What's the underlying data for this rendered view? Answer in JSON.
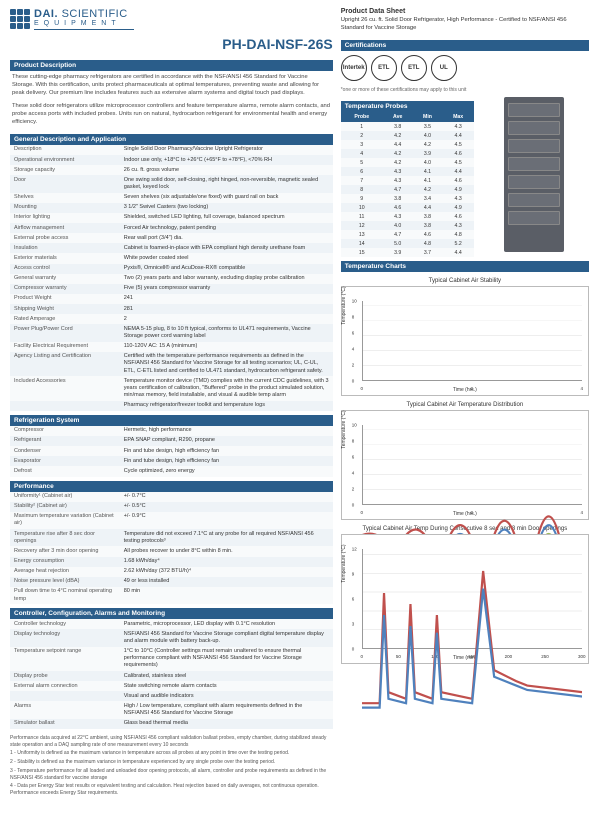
{
  "logo": {
    "l1": "DAI.",
    "l2": "SCIENTIFIC",
    "l3": "EQUIPMENT"
  },
  "model": "PH-DAI-NSF-26S",
  "pds": {
    "title": "Product Data Sheet",
    "sub": "Upright 26 cu. ft. Solid Door Refrigerator, High Performance - Certified to NSF/ANSI 456 Standard for Vaccine Storage"
  },
  "sections": {
    "prod_desc": "Product Description",
    "gen_desc": "General Description and Application",
    "refrig": "Refrigeration System",
    "perf": "Performance",
    "controller": "Controller, Configuration, Alarms and Monitoring",
    "cert": "Certifications",
    "probes": "Temperature Probes",
    "charts": "Temperature Charts"
  },
  "prod_desc_text1": "These cutting-edge pharmacy refrigerators are certified in accordance with the NSF/ANSI 456 Standard for Vaccine Storage. With this certification, units protect pharmaceuticals at optimal temperatures, preventing waste and allowing for peak delivery. Our premium line includes features such as extensive alarm systems and digital touch pad displays.",
  "prod_desc_text2": "These solid door refrigerators utilize microprocessor controllers and feature temperature alarms, remote alarm contacts, and probe access ports with included probes. Units run on natural, hydrocarbon refrigerant for environmental health and energy efficiency.",
  "gen_desc": [
    [
      "Description",
      "Single Solid Door Pharmacy/Vaccine Upright Refrigerator"
    ],
    [
      "Operational environment",
      "Indoor use only, +18°C to +26°C (+65°F to +78°F), <70% RH"
    ],
    [
      "Storage capacity",
      "26 cu. ft. gross volume"
    ],
    [
      "Door",
      "One swing solid door, self-closing, right hinged, non-reversible, magnetic sealed gasket, keyed lock"
    ],
    [
      "Shelves",
      "Seven shelves (six adjustable/one fixed) with guard rail on back"
    ],
    [
      "Mounting",
      "3 1/2\" Swivel Casters (two locking)"
    ],
    [
      "Interior lighting",
      "Shielded, switched LED lighting, full coverage, balanced spectrum"
    ],
    [
      "Airflow management",
      "Forced Air technology, patent pending"
    ],
    [
      "External probe access",
      "Rear wall port (3/4\") dia."
    ],
    [
      "Insulation",
      "Cabinet is foamed-in-place with EPA compliant high density urethane foam"
    ],
    [
      "Exterior materials",
      "White powder coated steel"
    ],
    [
      "Access control",
      "Pyxis®, Omnicell® and AcuDose-RX® compatible"
    ],
    [
      "General warranty",
      "Two (2) years parts and labor warranty, excluding display probe calibration"
    ],
    [
      "Compressor warranty",
      "Five (5) years compressor warranty"
    ],
    [
      "Product Weight",
      "241"
    ],
    [
      "Shipping Weight",
      "281"
    ],
    [
      "Rated Amperage",
      "2"
    ],
    [
      "Power Plug/Power Cord",
      "NEMA 5-15 plug, 8 to 10 ft typical, conforms to UL471 requirements, Vaccine Storage power cord warning label"
    ],
    [
      "Facility Electrical Requirement",
      "110-120V AC: 15 A (minimum)"
    ],
    [
      "Agency Listing and Certification",
      "Certified with the temperature performance requirements as defined in the NSF/ANSI 456 Standard for Vaccine Storage for all testing scenarios; UL, C-UL, ETL, C-ETL listed and certified to UL471 standard, hydrocarbon refrigerant safety."
    ],
    [
      "Included Accessories",
      "Temperature monitor device (TMD) complies with the current CDC guidelines, with 3 years certification of calibration, \"Buffered\" probe in the product simulated solution, min/max memory, field installable, and visual & audible temp alarm"
    ],
    [
      "",
      "Pharmacy refrigerator/freezer toolkit and temperature logs"
    ]
  ],
  "refrig": [
    [
      "Compressor",
      "Hermetic, high performance"
    ],
    [
      "Refrigerant",
      "EPA SNAP compliant, R290, propane"
    ],
    [
      "Condenser",
      "Fin and tube design, high efficiency fan"
    ],
    [
      "Evaporator",
      "Fin and tube design, high efficiency fan"
    ],
    [
      "Defrost",
      "Cycle optimized, zero energy"
    ]
  ],
  "perf": [
    [
      "Uniformity¹ (Cabinet air)",
      "+/- 0.7°C"
    ],
    [
      "Stability² (Cabinet air)",
      "+/- 0.5°C"
    ],
    [
      "Maximum temperature variation (Cabinet air)",
      "+/- 0.9°C"
    ],
    [
      "Temperature rise after 8 sec door openings",
      "Temperature did not exceed 7.1°C at any probe for all required NSF/ANSI 456 testing protocols³"
    ],
    [
      "Recovery after 3 min door opening",
      "All probes recover to under 8°C within 8 min."
    ],
    [
      "Energy consumption",
      "1.68 kWh/day⁴"
    ],
    [
      "Average heat rejection",
      "2.62 kWh/day (372 BTU/h)⁴"
    ],
    [
      "Noise pressure level (dBA)",
      "49 or less installed"
    ],
    [
      "Pull down time to 4°C nominal operating temp",
      "80 min"
    ]
  ],
  "controller": [
    [
      "Controller technology",
      "Parametric, microprocessor, LED display with 0.1°C resolution"
    ],
    [
      "Display technology",
      "NSF/ANSI 456 Standard for Vaccine Storage compliant digital temperature display and alarm module with battery back-up."
    ],
    [
      "Temperature setpoint range",
      "1°C to 10°C (Controller settings must remain unaltered to ensure thermal performance compliant with NSF/ANSI 456 Standard for Vaccine Storage requirements)"
    ],
    [
      "Display probe",
      "Calibrated, stainless steel"
    ],
    [
      "External alarm connection",
      "State switching remote alarm contacts"
    ],
    [
      "",
      "Visual and audible indicators"
    ],
    [
      "Alarms",
      "High / Low temperature, compliant with alarm requirements defined in the NSF/ANSI 456 Standard for Vaccine Storage"
    ],
    [
      "Simulator ballast",
      "Glass bead thermal media"
    ]
  ],
  "cert_labels": [
    "Intertek",
    "ETL",
    "ETL",
    "UL"
  ],
  "cert_note": "*one or more of these certifications may apply to this unit",
  "probes": {
    "headers": [
      "Probe",
      "Ave",
      "Min",
      "Max"
    ],
    "rows": [
      [
        "1",
        "3.8",
        "3.5",
        "4.3"
      ],
      [
        "2",
        "4.2",
        "4.0",
        "4.4"
      ],
      [
        "3",
        "4.4",
        "4.2",
        "4.5"
      ],
      [
        "4",
        "4.2",
        "3.9",
        "4.6"
      ],
      [
        "5",
        "4.2",
        "4.0",
        "4.5"
      ],
      [
        "6",
        "4.3",
        "4.1",
        "4.4"
      ],
      [
        "7",
        "4.3",
        "4.1",
        "4.6"
      ],
      [
        "8",
        "4.7",
        "4.2",
        "4.9"
      ],
      [
        "9",
        "3.8",
        "3.4",
        "4.3"
      ],
      [
        "10",
        "4.6",
        "4.4",
        "4.9"
      ],
      [
        "11",
        "4.3",
        "3.8",
        "4.6"
      ],
      [
        "12",
        "4.0",
        "3.8",
        "4.3"
      ],
      [
        "13",
        "4.7",
        "4.6",
        "4.8"
      ],
      [
        "14",
        "5.0",
        "4.8",
        "5.2"
      ],
      [
        "15",
        "3.9",
        "3.7",
        "4.4"
      ]
    ]
  },
  "charts": {
    "c1": {
      "title": "Typical Cabinet Air Stability",
      "ylabel": "Temperature (°C)",
      "xlabel": "Time (hrs.)",
      "yticks": [
        "0",
        "2",
        "4",
        "6",
        "8",
        "10"
      ],
      "xticks": [
        "0",
        "2",
        "4"
      ],
      "paths": [
        "M0,58 L5,58 L10,57 L15,59 L20,58 L25,57 L30,59 L35,58 L40,57 L45,59 L50,58 L55,57 L60,59 L65,58 L70,57 L75,59 L80,58 L85,57 L90,58 L95,59 L100,58"
      ],
      "colors": [
        "#3b7bbf"
      ]
    },
    "c2": {
      "title": "Typical Cabinet Air Temperature Distribution",
      "ylabel": "Temperature (°C)",
      "xlabel": "Time (hrs.)",
      "yticks": [
        "0",
        "2",
        "4",
        "6",
        "8",
        "10"
      ],
      "xticks": [
        "0",
        "2",
        "4"
      ],
      "paths": [
        "M0,50 Q5,48 10,52 T20,50 T30,52 T40,50 T50,52 T60,50 T70,52 T80,50 T90,52 T100,50",
        "M0,54 Q5,52 10,56 T20,54 T30,56 T40,54 T50,56 T60,54 T70,56 T80,54 T90,56 T100,54",
        "M0,58 Q5,56 10,60 T20,58 T30,60 T40,58 T50,60 T60,58 T70,60 T80,58 T90,60 T100,58",
        "M0,62 Q5,60 10,64 T20,62 T30,64 T40,62 T50,64 T60,62 T70,64 T80,62 T90,64 T100,62"
      ],
      "colors": [
        "#c0504d",
        "#4f81bd",
        "#9bbb59",
        "#8064a2"
      ]
    },
    "c3": {
      "title": "Typical Cabinet Air Temp During Consecutive 8 sec and 3 min Door openings",
      "ylabel": "Temperature (°C)",
      "xlabel": "Time (min)",
      "yticks": [
        "0",
        "3",
        "6",
        "9",
        "12"
      ],
      "xticks": [
        "0",
        "50",
        "100",
        "150",
        "200",
        "250",
        "300"
      ],
      "paths": [
        "M0,70 L8,70 L10,20 L12,65 L20,68 L22,25 L24,65 L32,68 L34,30 L36,65 L50,68 L55,10 L60,55 L70,60 L75,62 L100,65",
        "M0,72 L8,72 L10,30 L12,68 L20,70 L22,35 L24,68 L32,70 L34,38 L36,68 L50,70 L55,18 L60,58 L70,62 L75,64 L100,67"
      ],
      "colors": [
        "#c0504d",
        "#4f81bd"
      ]
    }
  },
  "footnotes": [
    "Performance data acquired at 22°C ambient, using NSF/ANSI 456 compliant validation ballast probes, empty chamber, during stabilized steady state operation and a DAQ sampling rate of one measurement every 10 seconds",
    "1 - Uniformity is defined as the maximum variance in temperature across all probes at any point in time over the testing period.",
    "2 - Stability is defined as the maximum variance in temperature experienced by any single probe over the testing period.",
    "3 - Temperature performance for all loaded and unloaded door opening protocols, all alarm, controller and probe requirements as defined in the NSF/ANSI 456 standard for vaccine storage",
    "4 - Data per Energy Star test results or equivalent testing and calculation. Heat rejection based on daily averages, not continuous operation. Performance exceeds Energy Star requirements."
  ]
}
